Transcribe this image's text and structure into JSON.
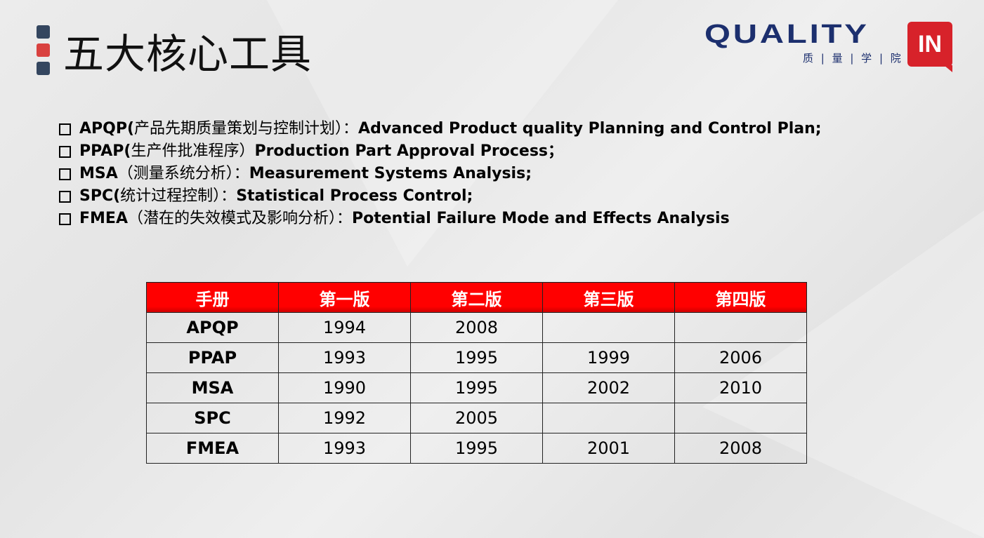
{
  "header": {
    "title": "五大核心工具",
    "logo": {
      "word": "QUALITY",
      "subtitle": "质 | 量 | 学 | 院",
      "badge": "IN"
    },
    "colors": {
      "bar_dark": "#34465f",
      "bar_red": "#d9413f",
      "brand_blue": "#1c2f6e",
      "brand_red": "#d7222a"
    }
  },
  "items": [
    {
      "code": "APQP(",
      "zh": "产品先期质量策划与控制计划）：",
      "en": "Advanced Product quality Planning and Control Plan;"
    },
    {
      "code": "PPAP(",
      "zh": "生产件批准程序）",
      "en": "Production Part Approval Process；"
    },
    {
      "code": "MSA",
      "zh": "（测量系统分析）：",
      "en": "Measurement  Systems Analysis;"
    },
    {
      "code": "SPC(",
      "zh": "统计过程控制）：",
      "en": "Statistical Process Control;"
    },
    {
      "code": "FMEA",
      "zh": "（潜在的失效模式及影响分析）：",
      "en": "Potential Failure Mode and Effects Analysis"
    }
  ],
  "table": {
    "header_color": "#ff0000",
    "columns": [
      "手册",
      "第一版",
      "第二版",
      "第三版",
      "第四版"
    ],
    "rows": [
      [
        "APQP",
        "1994",
        "2008",
        "",
        ""
      ],
      [
        "PPAP",
        "1993",
        "1995",
        "1999",
        "2006"
      ],
      [
        "MSA",
        "1990",
        "1995",
        "2002",
        "2010"
      ],
      [
        "SPC",
        "1992",
        "2005",
        "",
        ""
      ],
      [
        "FMEA",
        "1993",
        "1995",
        "2001",
        "2008"
      ]
    ]
  }
}
